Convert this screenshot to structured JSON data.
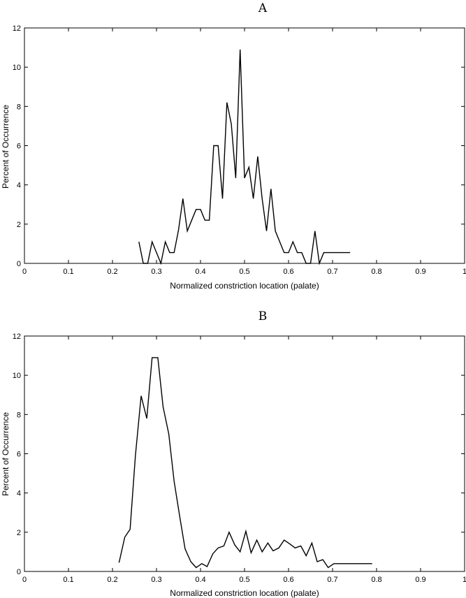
{
  "chart_data": [
    {
      "type": "line",
      "title": "A",
      "xlabel": "Normalized constriction location (palate)",
      "ylabel": "Percent of Occurrence",
      "xlim": [
        0,
        1
      ],
      "ylim": [
        0,
        12
      ],
      "xticks": [
        0,
        0.1,
        0.2,
        0.3,
        0.4,
        0.5,
        0.6,
        0.7,
        0.8,
        0.9,
        1
      ],
      "xtick_labels": [
        "0",
        "0.1",
        "0.2",
        "0.3",
        "0.4",
        "0.5",
        "0.6",
        "0.7",
        "0.8",
        "0.9",
        "1"
      ],
      "yticks": [
        0,
        2,
        4,
        6,
        8,
        10,
        12
      ],
      "ytick_labels": [
        "0",
        "2",
        "4",
        "6",
        "8",
        "10",
        "12"
      ],
      "grid": false,
      "series": [
        {
          "x": [
            0.26,
            0.27,
            0.28,
            0.29,
            0.3,
            0.31,
            0.32,
            0.33,
            0.34,
            0.35,
            0.36,
            0.37,
            0.38,
            0.39,
            0.4,
            0.41,
            0.42,
            0.43,
            0.44,
            0.45,
            0.46,
            0.47,
            0.48,
            0.49,
            0.5,
            0.51,
            0.52,
            0.53,
            0.54,
            0.55,
            0.56,
            0.57,
            0.58,
            0.59,
            0.6,
            0.61,
            0.62,
            0.63,
            0.64,
            0.65,
            0.66,
            0.67,
            0.68,
            0.69,
            0.7,
            0.71,
            0.72,
            0.73,
            0.74
          ],
          "y": [
            1.1,
            0.0,
            0.0,
            1.1,
            0.55,
            0.0,
            1.1,
            0.55,
            0.55,
            1.7,
            3.3,
            1.65,
            2.2,
            2.75,
            2.75,
            2.2,
            2.2,
            6.0,
            6.0,
            3.3,
            8.2,
            7.1,
            4.35,
            10.9,
            4.35,
            4.9,
            3.3,
            5.45,
            3.3,
            1.65,
            3.8,
            1.65,
            1.1,
            0.55,
            0.55,
            1.1,
            0.55,
            0.55,
            0.0,
            0.0,
            1.65,
            0.0,
            0.55,
            0.55,
            0.55,
            0.55,
            0.55,
            0.55,
            0.55
          ]
        }
      ]
    },
    {
      "type": "line",
      "title": "B",
      "xlabel": "Normalized constriction location (palate)",
      "ylabel": "Percent of Occurrence",
      "xlim": [
        0,
        1
      ],
      "ylim": [
        0,
        12
      ],
      "xticks": [
        0,
        0.1,
        0.2,
        0.3,
        0.4,
        0.5,
        0.6,
        0.7,
        0.8,
        0.9,
        1
      ],
      "xtick_labels": [
        "0",
        "0.1",
        "0.2",
        "0.3",
        "0.4",
        "0.5",
        "0.6",
        "0.7",
        "0.8",
        "0.9",
        "1"
      ],
      "yticks": [
        0,
        2,
        4,
        6,
        8,
        10,
        12
      ],
      "ytick_labels": [
        "0",
        "2",
        "4",
        "6",
        "8",
        "10",
        "12"
      ],
      "grid": false,
      "series": [
        {
          "x": [
            0.215,
            0.228,
            0.24,
            0.252,
            0.265,
            0.278,
            0.29,
            0.303,
            0.315,
            0.328,
            0.34,
            0.352,
            0.365,
            0.378,
            0.39,
            0.403,
            0.415,
            0.428,
            0.44,
            0.453,
            0.465,
            0.478,
            0.49,
            0.503,
            0.515,
            0.528,
            0.54,
            0.553,
            0.565,
            0.578,
            0.59,
            0.603,
            0.615,
            0.628,
            0.64,
            0.653,
            0.665,
            0.678,
            0.69,
            0.703,
            0.715,
            0.728,
            0.74,
            0.753,
            0.765,
            0.778,
            0.79
          ],
          "y": [
            0.45,
            1.75,
            2.15,
            5.9,
            8.95,
            7.8,
            10.9,
            10.9,
            8.4,
            7.0,
            4.6,
            2.9,
            1.15,
            0.5,
            0.2,
            0.4,
            0.25,
            0.9,
            1.2,
            1.3,
            2.0,
            1.35,
            1.0,
            2.05,
            0.95,
            1.6,
            1.0,
            1.45,
            1.05,
            1.2,
            1.6,
            1.4,
            1.2,
            1.3,
            0.8,
            1.45,
            0.5,
            0.6,
            0.2,
            0.4,
            0.4,
            0.4,
            0.4,
            0.4,
            0.4,
            0.4,
            0.4
          ]
        }
      ]
    }
  ]
}
